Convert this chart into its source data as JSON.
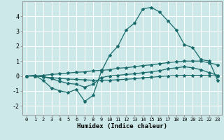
{
  "title": "",
  "xlabel": "Humidex (Indice chaleur)",
  "ylabel": "",
  "background_color": "#cce8e8",
  "grid_color": "#b0d8d8",
  "line_color": "#1a6b6b",
  "xlim": [
    -0.5,
    23.5
  ],
  "ylim": [
    -2.6,
    5.0
  ],
  "xticks": [
    0,
    1,
    2,
    3,
    4,
    5,
    6,
    7,
    8,
    9,
    10,
    11,
    12,
    13,
    14,
    15,
    16,
    17,
    18,
    19,
    20,
    21,
    22,
    23
  ],
  "yticks": [
    -2,
    -1,
    0,
    1,
    2,
    3,
    4
  ],
  "series": [
    [
      0.0,
      0.05,
      -0.3,
      -0.8,
      -1.0,
      -1.1,
      -0.9,
      -1.7,
      -1.3,
      0.3,
      1.4,
      2.0,
      3.1,
      3.55,
      4.5,
      4.6,
      4.3,
      3.7,
      3.1,
      2.1,
      1.9,
      1.1,
      1.0,
      -0.3
    ],
    [
      0.0,
      0.0,
      0.05,
      0.1,
      0.15,
      0.2,
      0.25,
      0.28,
      0.35,
      0.38,
      0.42,
      0.52,
      0.56,
      0.62,
      0.7,
      0.75,
      0.82,
      0.9,
      0.95,
      1.0,
      1.0,
      1.0,
      0.88,
      0.75
    ],
    [
      0.0,
      0.0,
      -0.05,
      -0.12,
      -0.15,
      -0.2,
      -0.23,
      -0.26,
      -0.28,
      -0.28,
      -0.28,
      -0.25,
      -0.22,
      -0.18,
      -0.12,
      -0.08,
      -0.04,
      0.0,
      0.02,
      0.04,
      0.04,
      0.04,
      0.02,
      0.0
    ],
    [
      0.0,
      0.0,
      -0.05,
      -0.18,
      -0.35,
      -0.5,
      -0.55,
      -0.75,
      -0.55,
      -0.1,
      0.0,
      0.05,
      0.1,
      0.15,
      0.22,
      0.28,
      0.36,
      0.48,
      0.55,
      0.62,
      0.55,
      0.42,
      0.22,
      0.05
    ]
  ],
  "marker": "*",
  "markersize": 3,
  "linewidth": 0.9
}
